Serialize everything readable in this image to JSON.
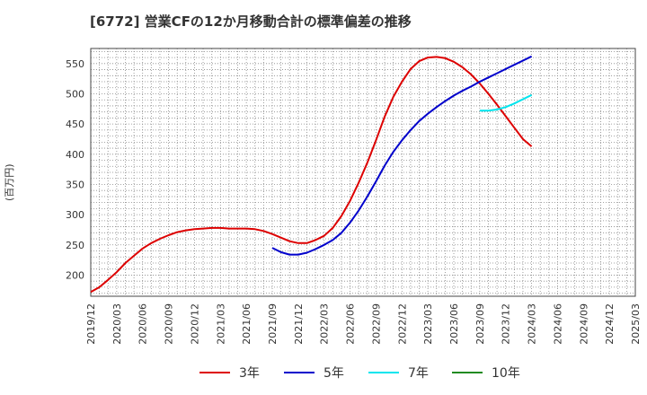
{
  "title": "[6772]  営業CFの12か月移動合計の標準偏差の推移",
  "y_axis_label": "(百万円)",
  "chart_data": {
    "type": "line",
    "title": "[6772]  営業CFの12か月移動合計の標準偏差の推移",
    "ylabel": "(百万円)",
    "ylim": [
      165,
      575
    ],
    "yticks": [
      200,
      250,
      300,
      350,
      400,
      450,
      500,
      550
    ],
    "x_ticks": [
      "2019/12",
      "2020/03",
      "2020/06",
      "2020/09",
      "2020/12",
      "2021/03",
      "2021/06",
      "2021/09",
      "2021/12",
      "2022/03",
      "2022/06",
      "2022/09",
      "2022/12",
      "2023/03",
      "2023/06",
      "2023/09",
      "2023/12",
      "2024/03",
      "2024/06",
      "2024/09",
      "2024/12",
      "2025/03"
    ],
    "grid": true,
    "legend_position": "bottom",
    "series": [
      {
        "name": "3年",
        "color": "#dd0000",
        "points": [
          [
            "2019/12",
            172
          ],
          [
            "2020/01",
            180
          ],
          [
            "2020/02",
            192
          ],
          [
            "2020/03",
            205
          ],
          [
            "2020/04",
            220
          ],
          [
            "2020/05",
            232
          ],
          [
            "2020/06",
            244
          ],
          [
            "2020/07",
            253
          ],
          [
            "2020/08",
            260
          ],
          [
            "2020/09",
            266
          ],
          [
            "2020/10",
            271
          ],
          [
            "2020/11",
            274
          ],
          [
            "2020/12",
            276
          ],
          [
            "2021/01",
            277
          ],
          [
            "2021/02",
            278
          ],
          [
            "2021/03",
            278
          ],
          [
            "2021/04",
            277
          ],
          [
            "2021/05",
            277
          ],
          [
            "2021/06",
            277
          ],
          [
            "2021/07",
            276
          ],
          [
            "2021/08",
            273
          ],
          [
            "2021/09",
            268
          ],
          [
            "2021/10",
            262
          ],
          [
            "2021/11",
            256
          ],
          [
            "2021/12",
            253
          ],
          [
            "2022/01",
            253
          ],
          [
            "2022/02",
            258
          ],
          [
            "2022/03",
            265
          ],
          [
            "2022/04",
            278
          ],
          [
            "2022/05",
            298
          ],
          [
            "2022/06",
            323
          ],
          [
            "2022/07",
            353
          ],
          [
            "2022/08",
            386
          ],
          [
            "2022/09",
            423
          ],
          [
            "2022/10",
            462
          ],
          [
            "2022/11",
            495
          ],
          [
            "2022/12",
            520
          ],
          [
            "2023/01",
            541
          ],
          [
            "2023/02",
            554
          ],
          [
            "2023/03",
            560
          ],
          [
            "2023/04",
            561
          ],
          [
            "2023/05",
            559
          ],
          [
            "2023/06",
            553
          ],
          [
            "2023/07",
            544
          ],
          [
            "2023/08",
            532
          ],
          [
            "2023/09",
            517
          ],
          [
            "2023/10",
            500
          ],
          [
            "2023/11",
            482
          ],
          [
            "2023/12",
            463
          ],
          [
            "2024/01",
            444
          ],
          [
            "2024/02",
            425
          ],
          [
            "2024/03",
            413
          ]
        ]
      },
      {
        "name": "5年",
        "color": "#0000cc",
        "points": [
          [
            "2021/09",
            245
          ],
          [
            "2021/10",
            238
          ],
          [
            "2021/11",
            234
          ],
          [
            "2021/12",
            234
          ],
          [
            "2022/01",
            237
          ],
          [
            "2022/02",
            243
          ],
          [
            "2022/03",
            250
          ],
          [
            "2022/04",
            258
          ],
          [
            "2022/05",
            270
          ],
          [
            "2022/06",
            287
          ],
          [
            "2022/07",
            307
          ],
          [
            "2022/08",
            330
          ],
          [
            "2022/09",
            355
          ],
          [
            "2022/10",
            381
          ],
          [
            "2022/11",
            404
          ],
          [
            "2022/12",
            423
          ],
          [
            "2023/01",
            440
          ],
          [
            "2023/02",
            455
          ],
          [
            "2023/03",
            467
          ],
          [
            "2023/04",
            478
          ],
          [
            "2023/05",
            488
          ],
          [
            "2023/06",
            497
          ],
          [
            "2023/07",
            505
          ],
          [
            "2023/08",
            512
          ],
          [
            "2023/09",
            520
          ],
          [
            "2023/10",
            527
          ],
          [
            "2023/11",
            534
          ],
          [
            "2023/12",
            541
          ],
          [
            "2024/01",
            548
          ],
          [
            "2024/02",
            555
          ],
          [
            "2024/03",
            562
          ]
        ]
      },
      {
        "name": "7年",
        "color": "#00e5ee",
        "points": [
          [
            "2023/09",
            472
          ],
          [
            "2023/10",
            472
          ],
          [
            "2023/11",
            474
          ],
          [
            "2023/12",
            478
          ],
          [
            "2024/01",
            484
          ],
          [
            "2024/02",
            491
          ],
          [
            "2024/03",
            498
          ]
        ]
      },
      {
        "name": "10年",
        "color": "#228b22",
        "points": []
      }
    ]
  }
}
